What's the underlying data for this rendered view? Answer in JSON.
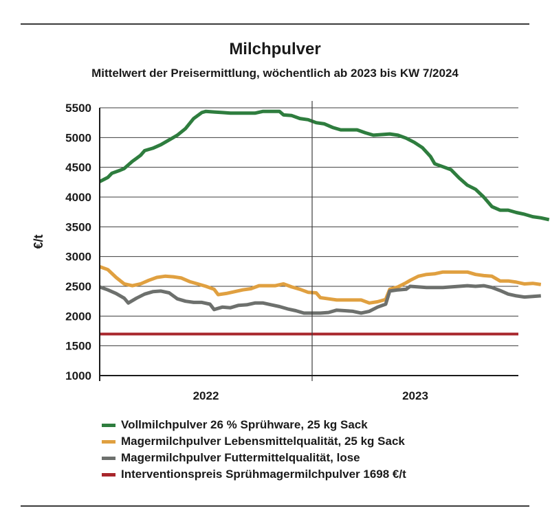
{
  "chart_data": {
    "type": "line",
    "title": "Milchpulver",
    "subtitle": "Mittelwert der Preisermittlung, wöchentlich ab 2023 bis KW 7/2024",
    "ylabel": "€/t",
    "ylim": [
      1000,
      5500
    ],
    "yticks": [
      "5500",
      "5000",
      "4500",
      "4000",
      "3500",
      "3000",
      "2500",
      "2000",
      "1500",
      "1000"
    ],
    "ytick_values": [
      5500,
      5000,
      4500,
      4000,
      3500,
      3000,
      2500,
      2000,
      1500,
      1000
    ],
    "x_categories": [
      "2022",
      "2023"
    ],
    "xlim_weeks": [
      0,
      104
    ],
    "grid": "horizontal gridlines, vertical year separator",
    "legend_position": "bottom",
    "series": [
      {
        "name": "Vollmilchpulver 26 % Sprühware, 25 kg Sack",
        "color": "#2e7d3e",
        "x": [
          0,
          1,
          2,
          3,
          4,
          5,
          6,
          7,
          8,
          9,
          10,
          11,
          12,
          13,
          14,
          15,
          16,
          17,
          18,
          19,
          20,
          21,
          22,
          23,
          24,
          25,
          26,
          27,
          28,
          29,
          30,
          31,
          32,
          33,
          34,
          35,
          36,
          37,
          38,
          39,
          40,
          41,
          42,
          43,
          44,
          45,
          46,
          47,
          48,
          49,
          50,
          51,
          52,
          53,
          54,
          55,
          56,
          57,
          58,
          59,
          60,
          61,
          62,
          63,
          64,
          65,
          66,
          67,
          68,
          69,
          70,
          71,
          72,
          73,
          74,
          75,
          76,
          77,
          78,
          79,
          80,
          81,
          82,
          83,
          84,
          85,
          86,
          87,
          88,
          89,
          90,
          91,
          92,
          93,
          94,
          95,
          96,
          97,
          98,
          99,
          100,
          101,
          102,
          103,
          104,
          105,
          106,
          107,
          108,
          109,
          110,
          111,
          112,
          113,
          114,
          115,
          116,
          117,
          118,
          119,
          120,
          121,
          122,
          123,
          124,
          125,
          126,
          127,
          128,
          129,
          130,
          131,
          132,
          133,
          134,
          135,
          136,
          137,
          138,
          139,
          140,
          141,
          142,
          143,
          144,
          145,
          146,
          147,
          148,
          149,
          150,
          151,
          152,
          153,
          154,
          155,
          156,
          157,
          158,
          159,
          160,
          161,
          162,
          163,
          164,
          165,
          166,
          167,
          168,
          169,
          170,
          171,
          172,
          173,
          174,
          175,
          176,
          177,
          178,
          179,
          180,
          181,
          182,
          183,
          184,
          185,
          186,
          187,
          188,
          189,
          190,
          191,
          192,
          193,
          194,
          195,
          196,
          197,
          198,
          199,
          200,
          201,
          202,
          203,
          204,
          205,
          206,
          207,
          208,
          209,
          210,
          211,
          212,
          213,
          214,
          215,
          216,
          217,
          218,
          219,
          220,
          221,
          222,
          223,
          224,
          225,
          226,
          227,
          228,
          229,
          230,
          231,
          232,
          233,
          234,
          235,
          236,
          237,
          238,
          239,
          240,
          241,
          242,
          243,
          244,
          245,
          246,
          247,
          248,
          249,
          250,
          251,
          252,
          253,
          254,
          255,
          256,
          257,
          258,
          259,
          260,
          261,
          262,
          263,
          264,
          265,
          266,
          267,
          268,
          269,
          270,
          271,
          272,
          273,
          274,
          275,
          276,
          277,
          278,
          279,
          280,
          281,
          282,
          283,
          284,
          285,
          286,
          287,
          288,
          289,
          290,
          291,
          292,
          293,
          294,
          295,
          296,
          297,
          298,
          299,
          300,
          301,
          302,
          303,
          304,
          305,
          306,
          307,
          308,
          309,
          310,
          311,
          312,
          313,
          314,
          315,
          316,
          317,
          318,
          319,
          320,
          321,
          322,
          323,
          324,
          325,
          326,
          327,
          328,
          329,
          330,
          331,
          332,
          333,
          334,
          335,
          336,
          337,
          338,
          339,
          340,
          341,
          342,
          343,
          344,
          345,
          346,
          347,
          348,
          349,
          350,
          351,
          352,
          353,
          354,
          355,
          356,
          357,
          358,
          359,
          360,
          361,
          362,
          363,
          364,
          365,
          366,
          367,
          368,
          369,
          370,
          371,
          372,
          373,
          374,
          375,
          376,
          377,
          378,
          379,
          380,
          381,
          382,
          383,
          384,
          385,
          386,
          387,
          388,
          389,
          390,
          391,
          392,
          393,
          394,
          395,
          396,
          397,
          398,
          399,
          400
        ],
        "points": [
          [
            0,
            4260
          ],
          [
            2,
            4330
          ],
          [
            3,
            4400
          ],
          [
            5,
            4450
          ],
          [
            6,
            4480
          ],
          [
            8,
            4600
          ],
          [
            9,
            4650
          ],
          [
            10,
            4700
          ],
          [
            11,
            4780
          ],
          [
            13,
            4820
          ],
          [
            15,
            4880
          ],
          [
            17,
            4960
          ],
          [
            19,
            5040
          ],
          [
            21,
            5150
          ],
          [
            23,
            5320
          ],
          [
            25,
            5420
          ],
          [
            26,
            5440
          ],
          [
            28,
            5430
          ],
          [
            30,
            5420
          ],
          [
            32,
            5410
          ],
          [
            35,
            5410
          ],
          [
            38,
            5410
          ],
          [
            40,
            5440
          ],
          [
            42,
            5440
          ],
          [
            44,
            5440
          ],
          [
            45,
            5380
          ],
          [
            47,
            5370
          ],
          [
            49,
            5320
          ],
          [
            51,
            5300
          ],
          [
            53,
            5250
          ],
          [
            55,
            5230
          ],
          [
            57,
            5170
          ],
          [
            59,
            5130
          ],
          [
            61,
            5130
          ],
          [
            63,
            5130
          ],
          [
            65,
            5080
          ],
          [
            67,
            5040
          ],
          [
            69,
            5050
          ],
          [
            71,
            5060
          ],
          [
            73,
            5040
          ],
          [
            75,
            4990
          ],
          [
            77,
            4920
          ],
          [
            79,
            4830
          ],
          [
            81,
            4680
          ],
          [
            82,
            4560
          ],
          [
            84,
            4510
          ],
          [
            86,
            4460
          ],
          [
            88,
            4320
          ],
          [
            90,
            4200
          ],
          [
            92,
            4130
          ],
          [
            94,
            4000
          ],
          [
            95,
            3920
          ],
          [
            96,
            3840
          ],
          [
            98,
            3780
          ],
          [
            100,
            3780
          ],
          [
            102,
            3740
          ],
          [
            104,
            3710
          ],
          [
            106,
            3670
          ],
          [
            108,
            3650
          ],
          [
            110,
            3620
          ]
        ]
      },
      {
        "name": "Magermilchpulver Lebensmittelqualität, 25 kg Sack",
        "color": "#e0a040",
        "points": [
          [
            0,
            2830
          ],
          [
            2,
            2780
          ],
          [
            4,
            2650
          ],
          [
            6,
            2540
          ],
          [
            8,
            2510
          ],
          [
            10,
            2540
          ],
          [
            12,
            2600
          ],
          [
            14,
            2650
          ],
          [
            16,
            2670
          ],
          [
            18,
            2660
          ],
          [
            20,
            2640
          ],
          [
            22,
            2580
          ],
          [
            24,
            2540
          ],
          [
            26,
            2500
          ],
          [
            28,
            2450
          ],
          [
            29,
            2360
          ],
          [
            31,
            2380
          ],
          [
            33,
            2410
          ],
          [
            35,
            2440
          ],
          [
            37,
            2460
          ],
          [
            39,
            2510
          ],
          [
            41,
            2510
          ],
          [
            43,
            2510
          ],
          [
            45,
            2540
          ],
          [
            47,
            2490
          ],
          [
            49,
            2450
          ],
          [
            51,
            2400
          ],
          [
            53,
            2390
          ],
          [
            54,
            2310
          ],
          [
            56,
            2290
          ],
          [
            58,
            2270
          ],
          [
            60,
            2270
          ],
          [
            62,
            2270
          ],
          [
            64,
            2270
          ],
          [
            66,
            2220
          ],
          [
            68,
            2240
          ],
          [
            70,
            2280
          ],
          [
            71,
            2450
          ],
          [
            73,
            2490
          ],
          [
            75,
            2560
          ],
          [
            76,
            2600
          ],
          [
            78,
            2670
          ],
          [
            80,
            2700
          ],
          [
            82,
            2710
          ],
          [
            84,
            2740
          ],
          [
            86,
            2740
          ],
          [
            88,
            2740
          ],
          [
            90,
            2740
          ],
          [
            92,
            2700
          ],
          [
            94,
            2680
          ],
          [
            96,
            2670
          ],
          [
            98,
            2590
          ],
          [
            100,
            2590
          ],
          [
            102,
            2570
          ],
          [
            104,
            2540
          ],
          [
            106,
            2550
          ],
          [
            108,
            2530
          ]
        ]
      },
      {
        "name": "Magermilchpulver Futtermittelqualität, lose",
        "color": "#6d706d",
        "points": [
          [
            0,
            2490
          ],
          [
            2,
            2440
          ],
          [
            4,
            2380
          ],
          [
            6,
            2300
          ],
          [
            7,
            2220
          ],
          [
            9,
            2300
          ],
          [
            11,
            2370
          ],
          [
            13,
            2410
          ],
          [
            15,
            2420
          ],
          [
            17,
            2390
          ],
          [
            19,
            2290
          ],
          [
            21,
            2250
          ],
          [
            23,
            2230
          ],
          [
            25,
            2230
          ],
          [
            27,
            2200
          ],
          [
            28,
            2110
          ],
          [
            30,
            2150
          ],
          [
            32,
            2140
          ],
          [
            34,
            2180
          ],
          [
            36,
            2190
          ],
          [
            38,
            2220
          ],
          [
            40,
            2220
          ],
          [
            42,
            2190
          ],
          [
            44,
            2160
          ],
          [
            46,
            2120
          ],
          [
            48,
            2090
          ],
          [
            50,
            2050
          ],
          [
            52,
            2050
          ],
          [
            54,
            2050
          ],
          [
            56,
            2060
          ],
          [
            58,
            2100
          ],
          [
            60,
            2090
          ],
          [
            62,
            2080
          ],
          [
            64,
            2050
          ],
          [
            66,
            2080
          ],
          [
            68,
            2150
          ],
          [
            70,
            2200
          ],
          [
            71,
            2420
          ],
          [
            73,
            2440
          ],
          [
            75,
            2450
          ],
          [
            76,
            2500
          ],
          [
            78,
            2490
          ],
          [
            80,
            2480
          ],
          [
            82,
            2480
          ],
          [
            84,
            2480
          ],
          [
            86,
            2490
          ],
          [
            88,
            2500
          ],
          [
            90,
            2510
          ],
          [
            92,
            2500
          ],
          [
            94,
            2510
          ],
          [
            96,
            2480
          ],
          [
            98,
            2430
          ],
          [
            100,
            2370
          ],
          [
            102,
            2340
          ],
          [
            104,
            2320
          ],
          [
            106,
            2330
          ],
          [
            108,
            2340
          ]
        ]
      },
      {
        "name": "Interventionspreis Sprühmagermilchpulver 1698 €/t",
        "color": "#a8262c",
        "points": [
          [
            0,
            1698
          ],
          [
            208,
            1698
          ]
        ]
      }
    ]
  },
  "legend": [
    {
      "label": "Vollmilchpulver 26 % Sprühware, 25 kg Sack",
      "color": "#2e7d3e"
    },
    {
      "label": "Magermilchpulver Lebensmittelqualität, 25 kg Sack",
      "color": "#e0a040"
    },
    {
      "label": "Magermilchpulver Futtermittelqualität, lose",
      "color": "#6d706d"
    },
    {
      "label": "Interventionspreis Sprühmagermilchpulver 1698 €/t",
      "color": "#a8262c"
    }
  ]
}
